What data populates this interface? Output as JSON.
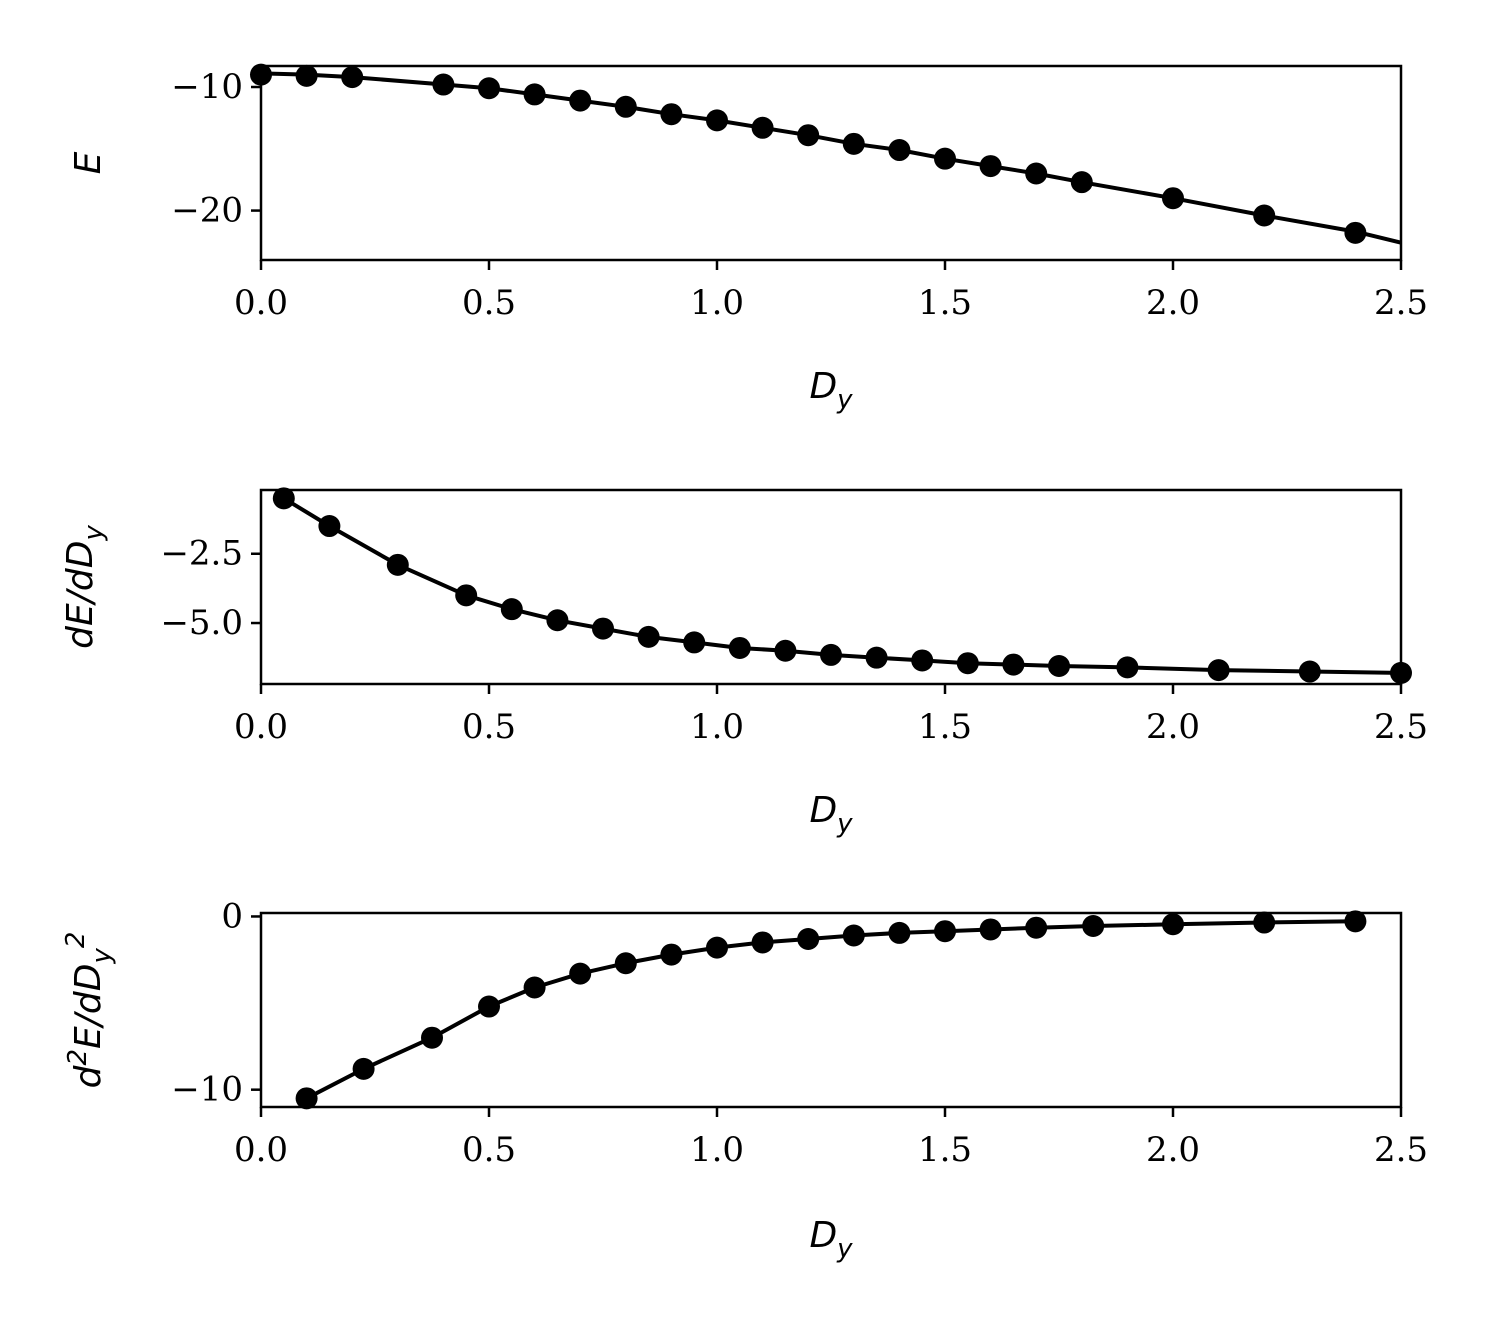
{
  "chart_data": [
    {
      "type": "line",
      "xlabel": "D_y",
      "ylabel": "E",
      "xlim": [
        0.0,
        2.5
      ],
      "ylim": [
        -24.0,
        -8.3
      ],
      "xticks": [
        "0.0",
        "0.5",
        "1.0",
        "1.5",
        "2.0",
        "2.5"
      ],
      "yticks": [
        "−10",
        "−20"
      ],
      "ytick_values": [
        -10,
        -20
      ],
      "grid": false,
      "series": [
        {
          "markers": true,
          "x": [
            0.0,
            0.1,
            0.2,
            0.4,
            0.5,
            0.6,
            0.7,
            0.8,
            0.9,
            1.0,
            1.1,
            1.2,
            1.3,
            1.4,
            1.5,
            1.6,
            1.7,
            1.8,
            2.0,
            2.2,
            2.4
          ],
          "y": [
            -9.0,
            -9.1,
            -9.2,
            -9.8,
            -10.1,
            -10.6,
            -11.1,
            -11.6,
            -12.2,
            -12.7,
            -13.3,
            -13.9,
            -14.6,
            -15.1,
            -15.8,
            -16.4,
            -17.0,
            -17.7,
            -19.0,
            -20.4,
            -21.8
          ]
        }
      ],
      "curve": {
        "x": [
          0.0,
          0.1,
          0.2,
          0.4,
          0.5,
          0.6,
          0.7,
          0.8,
          0.9,
          1.0,
          1.1,
          1.2,
          1.3,
          1.4,
          1.5,
          1.6,
          1.7,
          1.8,
          2.0,
          2.2,
          2.4,
          2.5
        ],
        "y": [
          -8.9,
          -9.0,
          -9.2,
          -9.8,
          -10.1,
          -10.6,
          -11.1,
          -11.6,
          -12.2,
          -12.7,
          -13.3,
          -13.9,
          -14.6,
          -15.1,
          -15.8,
          -16.4,
          -17.0,
          -17.7,
          -19.0,
          -20.4,
          -21.7,
          -22.6
        ]
      }
    },
    {
      "type": "line",
      "xlabel": "D_y",
      "ylabel": "dE/dD_y",
      "xlim": [
        0.0,
        2.5
      ],
      "ylim": [
        -7.2,
        -0.2
      ],
      "xticks": [
        "0.0",
        "0.5",
        "1.0",
        "1.5",
        "2.0",
        "2.5"
      ],
      "yticks": [
        "−2.5",
        "−5.0"
      ],
      "ytick_values": [
        -2.5,
        -5.0
      ],
      "grid": false,
      "series": [
        {
          "markers": true,
          "x": [
            0.05,
            0.15,
            0.3,
            0.45,
            0.55,
            0.65,
            0.75,
            0.85,
            0.95,
            1.05,
            1.15,
            1.25,
            1.35,
            1.45,
            1.55,
            1.65,
            1.75,
            1.9,
            2.1,
            2.3,
            2.5
          ],
          "y": [
            -0.5,
            -1.5,
            -2.9,
            -4.0,
            -4.5,
            -4.9,
            -5.2,
            -5.5,
            -5.7,
            -5.9,
            -6.0,
            -6.15,
            -6.25,
            -6.35,
            -6.45,
            -6.5,
            -6.55,
            -6.6,
            -6.7,
            -6.75,
            -6.8
          ]
        }
      ],
      "curve": {
        "x": [
          0.05,
          0.15,
          0.3,
          0.45,
          0.55,
          0.65,
          0.75,
          0.85,
          0.95,
          1.05,
          1.15,
          1.25,
          1.35,
          1.45,
          1.55,
          1.65,
          1.75,
          1.9,
          2.1,
          2.3,
          2.5
        ],
        "y": [
          -0.5,
          -1.5,
          -2.9,
          -4.0,
          -4.5,
          -4.9,
          -5.2,
          -5.5,
          -5.7,
          -5.9,
          -6.0,
          -6.15,
          -6.25,
          -6.35,
          -6.45,
          -6.5,
          -6.55,
          -6.6,
          -6.7,
          -6.75,
          -6.8
        ]
      }
    },
    {
      "type": "line",
      "xlabel": "D_y",
      "ylabel": "d²E/dD_y²",
      "xlim": [
        0.0,
        2.5
      ],
      "ylim": [
        -11.0,
        0.2
      ],
      "xticks": [
        "0.0",
        "0.5",
        "1.0",
        "1.5",
        "2.0",
        "2.5"
      ],
      "yticks": [
        "0",
        "−10"
      ],
      "ytick_values": [
        0,
        -10
      ],
      "grid": false,
      "series": [
        {
          "markers": true,
          "x": [
            0.1,
            0.225,
            0.375,
            0.5,
            0.6,
            0.7,
            0.8,
            0.9,
            1.0,
            1.1,
            1.2,
            1.3,
            1.4,
            1.5,
            1.6,
            1.7,
            1.825,
            2.0,
            2.2,
            2.4
          ],
          "y": [
            -10.5,
            -8.8,
            -7.0,
            -5.2,
            -4.1,
            -3.3,
            -2.7,
            -2.2,
            -1.8,
            -1.5,
            -1.3,
            -1.1,
            -0.95,
            -0.85,
            -0.75,
            -0.65,
            -0.55,
            -0.45,
            -0.35,
            -0.28
          ]
        }
      ],
      "curve": {
        "x": [
          0.1,
          0.225,
          0.375,
          0.5,
          0.6,
          0.7,
          0.8,
          0.9,
          1.0,
          1.1,
          1.2,
          1.3,
          1.4,
          1.5,
          1.6,
          1.7,
          1.825,
          2.0,
          2.2,
          2.4
        ],
        "y": [
          -10.5,
          -8.8,
          -7.0,
          -5.2,
          -4.1,
          -3.3,
          -2.7,
          -2.2,
          -1.8,
          -1.5,
          -1.3,
          -1.1,
          -0.95,
          -0.85,
          -0.75,
          -0.65,
          -0.55,
          -0.45,
          -0.35,
          -0.28
        ]
      }
    }
  ]
}
